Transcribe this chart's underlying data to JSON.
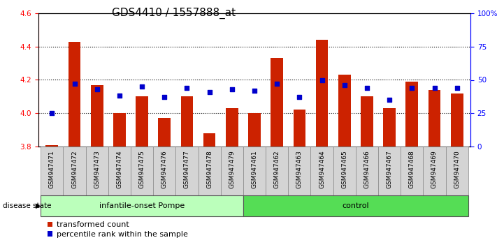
{
  "title": "GDS4410 / 1557888_at",
  "samples": [
    "GSM947471",
    "GSM947472",
    "GSM947473",
    "GSM947474",
    "GSM947475",
    "GSM947476",
    "GSM947477",
    "GSM947478",
    "GSM947479",
    "GSM947461",
    "GSM947462",
    "GSM947463",
    "GSM947464",
    "GSM947465",
    "GSM947466",
    "GSM947467",
    "GSM947468",
    "GSM947469",
    "GSM947470"
  ],
  "red_values": [
    3.81,
    4.43,
    4.17,
    4.0,
    4.1,
    3.97,
    4.1,
    3.88,
    4.03,
    4.0,
    4.33,
    4.02,
    4.44,
    4.23,
    4.1,
    4.03,
    4.19,
    4.14,
    4.12
  ],
  "blue_values": [
    25,
    47,
    43,
    38,
    45,
    37,
    44,
    41,
    43,
    42,
    47,
    37,
    50,
    46,
    44,
    35,
    44,
    44,
    44
  ],
  "group1_label": "infantile-onset Pompe",
  "group2_label": "control",
  "group1_count": 9,
  "group2_count": 10,
  "ylim_left": [
    3.8,
    4.6
  ],
  "ylim_right": [
    0,
    100
  ],
  "yticks_left": [
    3.8,
    4.0,
    4.2,
    4.4,
    4.6
  ],
  "yticks_right": [
    0,
    25,
    50,
    75,
    100
  ],
  "ytick_labels_right": [
    "0",
    "25",
    "50",
    "75",
    "100%"
  ],
  "bar_color": "#cc2200",
  "dot_color": "#0000cc",
  "group1_bg": "#bbffbb",
  "group2_bg": "#55dd55",
  "legend_labels": [
    "transformed count",
    "percentile rank within the sample"
  ],
  "base_value": 3.8,
  "disease_state_label": "disease state",
  "title_fontsize": 11,
  "tick_fontsize": 7.5,
  "label_fontsize": 8
}
